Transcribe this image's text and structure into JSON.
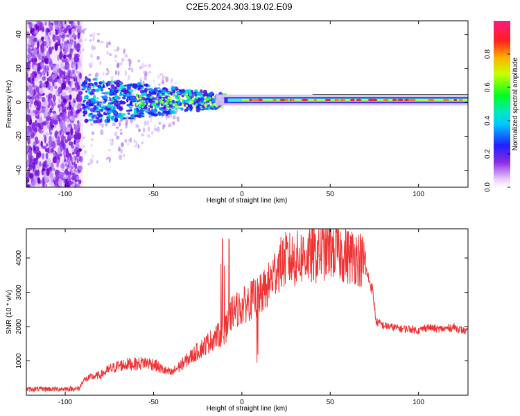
{
  "title": "C2E5.2024.303.19.02.E09",
  "chart_data": [
    {
      "type": "heatmap",
      "xlabel": "Height of straight line (km)",
      "ylabel": "Frequency (Hz)",
      "xlim": [
        -122,
        128
      ],
      "ylim": [
        -50,
        48
      ],
      "xticks": [
        -100,
        -50,
        0,
        50,
        100
      ],
      "yticks": [
        -40,
        -20,
        0,
        20,
        40
      ],
      "colorbar": {
        "label": "Normalized spectral amplitude",
        "range": [
          0,
          1
        ],
        "ticks": [
          0.0,
          0.2,
          0.4,
          0.6,
          0.8
        ]
      }
    },
    {
      "type": "line",
      "xlabel": "Height of straight line (km)",
      "ylabel": "SNR (10 * v/v)",
      "xlim": [
        -122,
        128
      ],
      "ylim": [
        0,
        4850
      ],
      "xticks": [
        -100,
        -50,
        0,
        50,
        100
      ],
      "yticks": [
        1000,
        2000,
        3000,
        4000
      ],
      "series": [
        {
          "color": "#ee3333",
          "x": [
            -122,
            -110,
            -100,
            -92,
            -90,
            -85,
            -80,
            -75,
            -70,
            -65,
            -60,
            -55,
            -50,
            -45,
            -40,
            -35,
            -30,
            -25,
            -20,
            -15,
            -10,
            -5,
            0,
            5,
            10,
            15,
            20,
            25,
            30,
            35,
            40,
            45,
            50,
            55,
            60,
            65,
            70,
            74,
            76,
            80,
            85,
            90,
            95,
            100,
            105,
            110,
            115,
            120,
            128
          ],
          "y": [
            150,
            160,
            160,
            170,
            400,
            500,
            550,
            700,
            800,
            850,
            850,
            900,
            850,
            700,
            600,
            800,
            1000,
            1200,
            1400,
            1600,
            1700,
            2300,
            2400,
            2600,
            2700,
            3000,
            3500,
            3700,
            3700,
            3800,
            3800,
            3900,
            4000,
            3900,
            3800,
            3800,
            3600,
            3000,
            2100,
            2000,
            1950,
            1900,
            1900,
            1850,
            1950,
            1900,
            1900,
            1950,
            1800
          ]
        }
      ]
    }
  ]
}
